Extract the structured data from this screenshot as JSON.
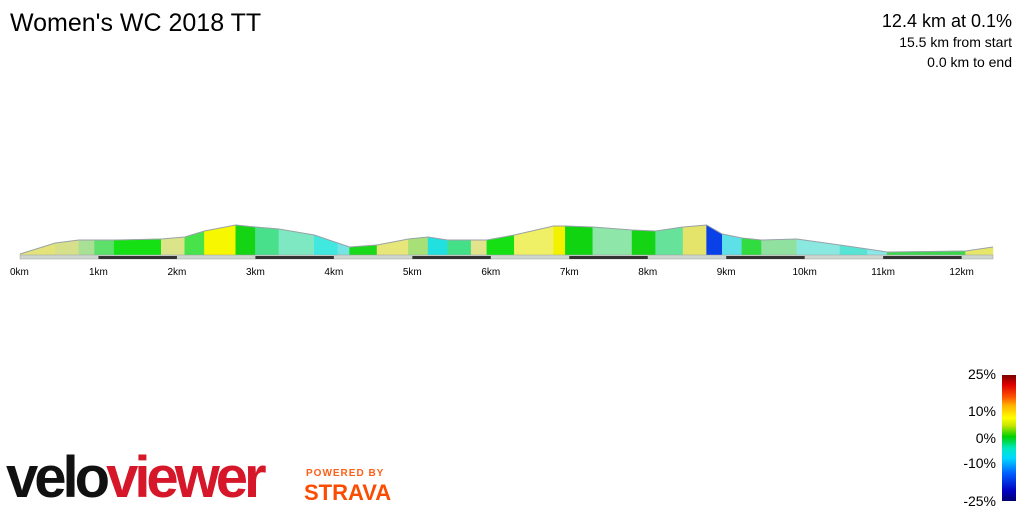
{
  "header": {
    "title": "Women's WC 2018 TT",
    "segment_summary": "12.4 km at 0.1%",
    "from_start": "15.5 km from start",
    "to_end": "0.0 km to end"
  },
  "chart_data": {
    "type": "area",
    "title": "Women's WC 2018 TT",
    "xlabel": "",
    "ylabel": "",
    "xlim": [
      0,
      12.4
    ],
    "x_unit": "km",
    "x_ticks": [
      "0km",
      "1km",
      "2km",
      "3km",
      "4km",
      "5km",
      "6km",
      "7km",
      "8km",
      "9km",
      "10km",
      "11km",
      "12km"
    ],
    "grid": false,
    "profile": [
      {
        "x": 0.0,
        "rel_elev": 1,
        "color": "#e3e37a"
      },
      {
        "x": 0.45,
        "rel_elev": 12,
        "color": "#d6e08a"
      },
      {
        "x": 0.75,
        "rel_elev": 15,
        "color": "#a8e095"
      },
      {
        "x": 0.95,
        "rel_elev": 15,
        "color": "#5ce06a"
      },
      {
        "x": 1.2,
        "rel_elev": 15,
        "color": "#14e014"
      },
      {
        "x": 1.8,
        "rel_elev": 16,
        "color": "#dce48a"
      },
      {
        "x": 2.1,
        "rel_elev": 18,
        "color": "#48e24a"
      },
      {
        "x": 2.35,
        "rel_elev": 24,
        "color": "#f7f700"
      },
      {
        "x": 2.75,
        "rel_elev": 30,
        "color": "#14d414"
      },
      {
        "x": 3.0,
        "rel_elev": 28,
        "color": "#48e08a"
      },
      {
        "x": 3.3,
        "rel_elev": 26,
        "color": "#7ee8c2"
      },
      {
        "x": 3.75,
        "rel_elev": 20,
        "color": "#40e8e0"
      },
      {
        "x": 4.05,
        "rel_elev": 12,
        "color": "#74e4e4"
      },
      {
        "x": 4.2,
        "rel_elev": 8,
        "color": "#1ad81a"
      },
      {
        "x": 4.55,
        "rel_elev": 10,
        "color": "#e6e67a"
      },
      {
        "x": 4.95,
        "rel_elev": 16,
        "color": "#a8e078"
      },
      {
        "x": 5.2,
        "rel_elev": 18,
        "color": "#22e0e0"
      },
      {
        "x": 5.45,
        "rel_elev": 15,
        "color": "#44e088"
      },
      {
        "x": 5.75,
        "rel_elev": 15,
        "color": "#e3e38c"
      },
      {
        "x": 5.95,
        "rel_elev": 15,
        "color": "#14e014"
      },
      {
        "x": 6.3,
        "rel_elev": 20,
        "color": "#f0f066"
      },
      {
        "x": 6.8,
        "rel_elev": 29,
        "color": "#f2f200"
      },
      {
        "x": 6.95,
        "rel_elev": 29,
        "color": "#10d410"
      },
      {
        "x": 7.3,
        "rel_elev": 28,
        "color": "#8ee6a8"
      },
      {
        "x": 7.8,
        "rel_elev": 25,
        "color": "#14d414"
      },
      {
        "x": 8.1,
        "rel_elev": 24,
        "color": "#66e29a"
      },
      {
        "x": 8.45,
        "rel_elev": 28,
        "color": "#e4e46a"
      },
      {
        "x": 8.75,
        "rel_elev": 30,
        "color": "#0a40e8"
      },
      {
        "x": 8.95,
        "rel_elev": 21,
        "color": "#5ee0e8"
      },
      {
        "x": 9.2,
        "rel_elev": 17,
        "color": "#30dc40"
      },
      {
        "x": 9.45,
        "rel_elev": 15,
        "color": "#90e0a0"
      },
      {
        "x": 9.9,
        "rel_elev": 16,
        "color": "#8ae8e0"
      },
      {
        "x": 10.45,
        "rel_elev": 10,
        "color": "#58e4d4"
      },
      {
        "x": 10.8,
        "rel_elev": 6,
        "color": "#8ae8e8"
      },
      {
        "x": 11.05,
        "rel_elev": 3,
        "color": "#3cd84c"
      },
      {
        "x": 12.05,
        "rel_elev": 4,
        "color": "#e6e66a"
      },
      {
        "x": 12.4,
        "rel_elev": 8,
        "color": "#b4e688"
      }
    ]
  },
  "gradient_legend": {
    "labels": [
      "25%",
      "10%",
      "0%",
      "-10%",
      "-25%"
    ],
    "label_values": [
      25,
      10,
      0,
      -10,
      -25
    ]
  },
  "branding": {
    "logo_part1": "velo",
    "logo_part2": "viewer",
    "powered_by": "POWERED BY",
    "strava": "STRAVA"
  }
}
